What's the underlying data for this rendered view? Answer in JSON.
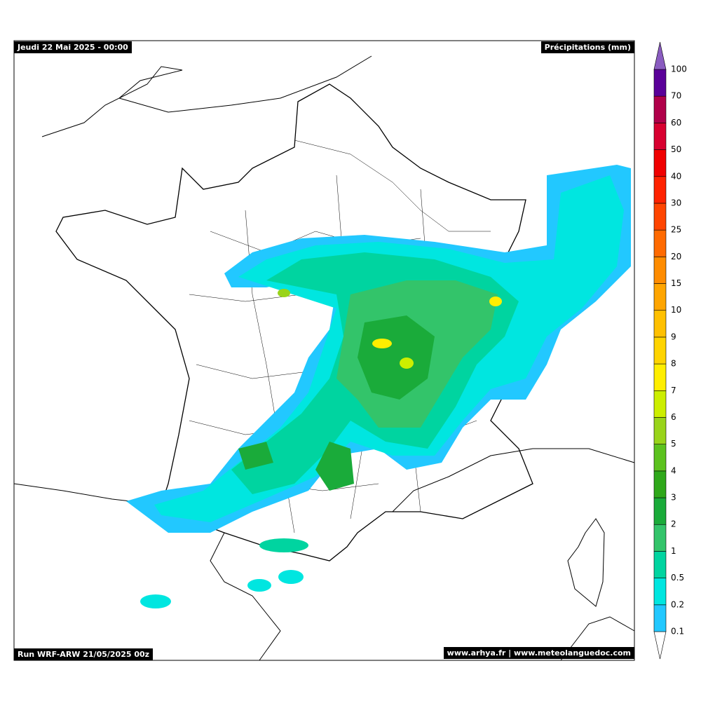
{
  "header": {
    "date": "Jeudi 22 Mai 2025 - 00:00",
    "variable": "Précipitations (mm)"
  },
  "footer": {
    "run": "Run WRF-ARW 21/05/2025 00z",
    "credits": "www.arhya.fr | www.meteolanguedoc.com"
  },
  "legend": {
    "levels": [
      {
        "value": 0.1,
        "color": "#22c8ff"
      },
      {
        "value": 0.2,
        "color": "#00e6e0"
      },
      {
        "value": 0.5,
        "color": "#00d4a0"
      },
      {
        "value": 1,
        "color": "#33c46a"
      },
      {
        "value": 2,
        "color": "#1aab3a"
      },
      {
        "value": 3,
        "color": "#2fa81a"
      },
      {
        "value": 4,
        "color": "#5cc21e"
      },
      {
        "value": 5,
        "color": "#99d41a"
      },
      {
        "value": 6,
        "color": "#ccee00"
      },
      {
        "value": 7,
        "color": "#ffee00"
      },
      {
        "value": 8,
        "color": "#ffd400"
      },
      {
        "value": 9,
        "color": "#ffc000"
      },
      {
        "value": 10,
        "color": "#ffa500"
      },
      {
        "value": 15,
        "color": "#ff8c00"
      },
      {
        "value": 20,
        "color": "#ff6a00"
      },
      {
        "value": 25,
        "color": "#ff4500"
      },
      {
        "value": 30,
        "color": "#ff2200"
      },
      {
        "value": 40,
        "color": "#f00000"
      },
      {
        "value": 50,
        "color": "#d80030"
      },
      {
        "value": 60,
        "color": "#b0004a"
      },
      {
        "value": 70,
        "color": "#5a0099"
      },
      {
        "value": 100,
        "color": "#8a5cc0"
      }
    ]
  }
}
